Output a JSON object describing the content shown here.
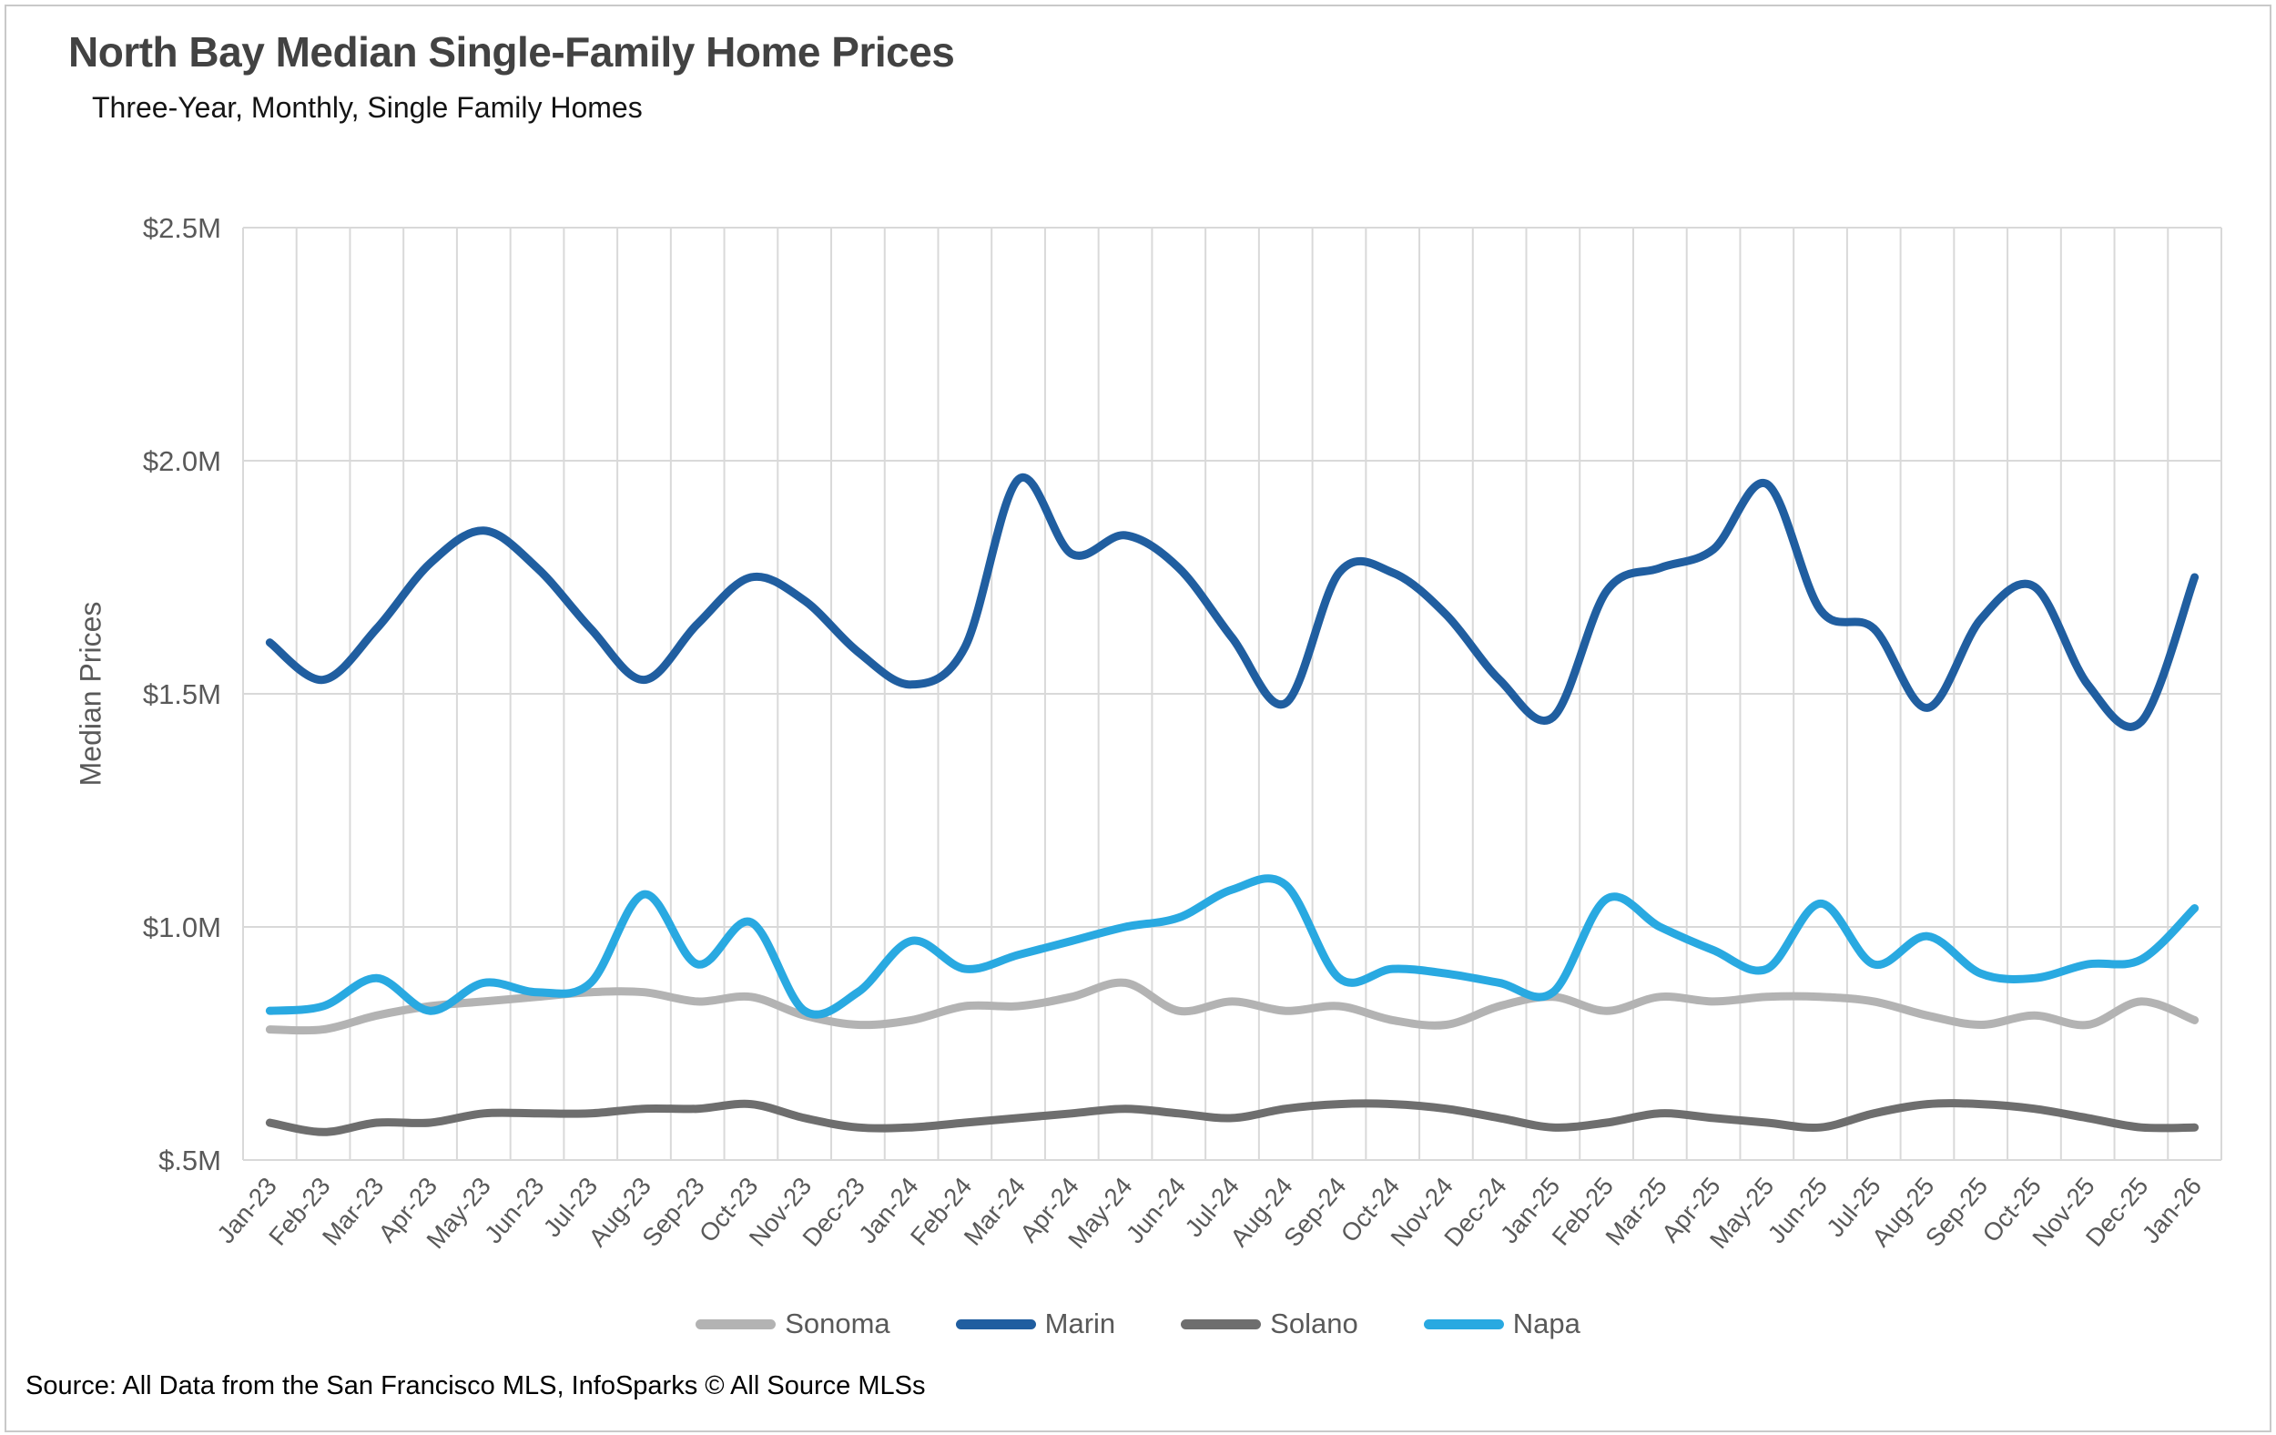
{
  "header": {
    "title": "North Bay Median Single-Family Home Prices",
    "subtitle": "Three-Year, Monthly, Single Family Homes"
  },
  "source_note": "Source: All Data from the San Francisco MLS, InfoSparks © All Source MLSs",
  "chart_data": {
    "type": "line",
    "title": "North Bay Median Single-Family Home Prices",
    "subtitle": "Three-Year, Monthly, Single Family Homes",
    "xlabel": "",
    "ylabel": "Median Prices",
    "ylim": [
      0.5,
      2.5
    ],
    "grid": true,
    "legend_position": "bottom",
    "smoothed_lines": true,
    "y_ticks": [
      {
        "label": "$2.5M",
        "value": 2.5
      },
      {
        "label": "$2.0M",
        "value": 2.0
      },
      {
        "label": "$1.5M",
        "value": 1.5
      },
      {
        "label": "$1.0M",
        "value": 1.0
      },
      {
        "label": "$.5M",
        "value": 0.5
      }
    ],
    "categories": [
      "Jan-23",
      "Feb-23",
      "Mar-23",
      "Apr-23",
      "May-23",
      "Jun-23",
      "Jul-23",
      "Aug-23",
      "Sep-23",
      "Oct-23",
      "Nov-23",
      "Dec-23",
      "Jan-24",
      "Feb-24",
      "Mar-24",
      "Apr-24",
      "May-24",
      "Jun-24",
      "Jul-24",
      "Aug-24",
      "Sep-24",
      "Oct-24",
      "Nov-24",
      "Dec-24",
      "Jan-25",
      "Feb-25",
      "Mar-25",
      "Apr-25",
      "May-25",
      "Jun-25",
      "Jul-25",
      "Aug-25",
      "Sep-25",
      "Oct-25",
      "Nov-25",
      "Dec-25",
      "Jan-26"
    ],
    "series": [
      {
        "name": "Sonoma",
        "color": "#b3b3b3",
        "unit": "millions USD",
        "values": [
          0.78,
          0.78,
          0.81,
          0.83,
          0.84,
          0.85,
          0.86,
          0.86,
          0.84,
          0.85,
          0.81,
          0.79,
          0.8,
          0.83,
          0.83,
          0.85,
          0.88,
          0.82,
          0.84,
          0.82,
          0.83,
          0.8,
          0.79,
          0.83,
          0.85,
          0.82,
          0.85,
          0.84,
          0.85,
          0.85,
          0.84,
          0.81,
          0.79,
          0.81,
          0.79,
          0.84,
          0.8
        ]
      },
      {
        "name": "Marin",
        "color": "#205ea0",
        "unit": "millions USD",
        "values": [
          1.61,
          1.53,
          1.64,
          1.78,
          1.85,
          1.77,
          1.64,
          1.53,
          1.65,
          1.75,
          1.7,
          1.59,
          1.52,
          1.6,
          1.96,
          1.8,
          1.84,
          1.77,
          1.62,
          1.48,
          1.76,
          1.76,
          1.67,
          1.53,
          1.45,
          1.72,
          1.77,
          1.81,
          1.95,
          1.68,
          1.64,
          1.47,
          1.66,
          1.73,
          1.52,
          1.44,
          1.75
        ]
      },
      {
        "name": "Solano",
        "color": "#6e6e6e",
        "unit": "millions USD",
        "values": [
          0.58,
          0.56,
          0.58,
          0.58,
          0.6,
          0.6,
          0.6,
          0.61,
          0.61,
          0.62,
          0.59,
          0.57,
          0.57,
          0.58,
          0.59,
          0.6,
          0.61,
          0.6,
          0.59,
          0.61,
          0.62,
          0.62,
          0.61,
          0.59,
          0.57,
          0.58,
          0.6,
          0.59,
          0.58,
          0.57,
          0.6,
          0.62,
          0.62,
          0.61,
          0.59,
          0.57,
          0.57
        ]
      },
      {
        "name": "Napa",
        "color": "#29a9e1",
        "unit": "millions USD",
        "values": [
          0.82,
          0.83,
          0.89,
          0.82,
          0.88,
          0.86,
          0.88,
          1.07,
          0.92,
          1.01,
          0.82,
          0.86,
          0.97,
          0.91,
          0.94,
          0.97,
          1.0,
          1.02,
          1.08,
          1.09,
          0.89,
          0.91,
          0.9,
          0.88,
          0.86,
          1.06,
          1.0,
          0.95,
          0.91,
          1.05,
          0.92,
          0.98,
          0.9,
          0.89,
          0.92,
          0.93,
          1.04
        ]
      }
    ],
    "plot_style": {
      "gridline_color": "#d9d9d9",
      "axis_text_color": "#595959",
      "line_width": 9
    }
  }
}
